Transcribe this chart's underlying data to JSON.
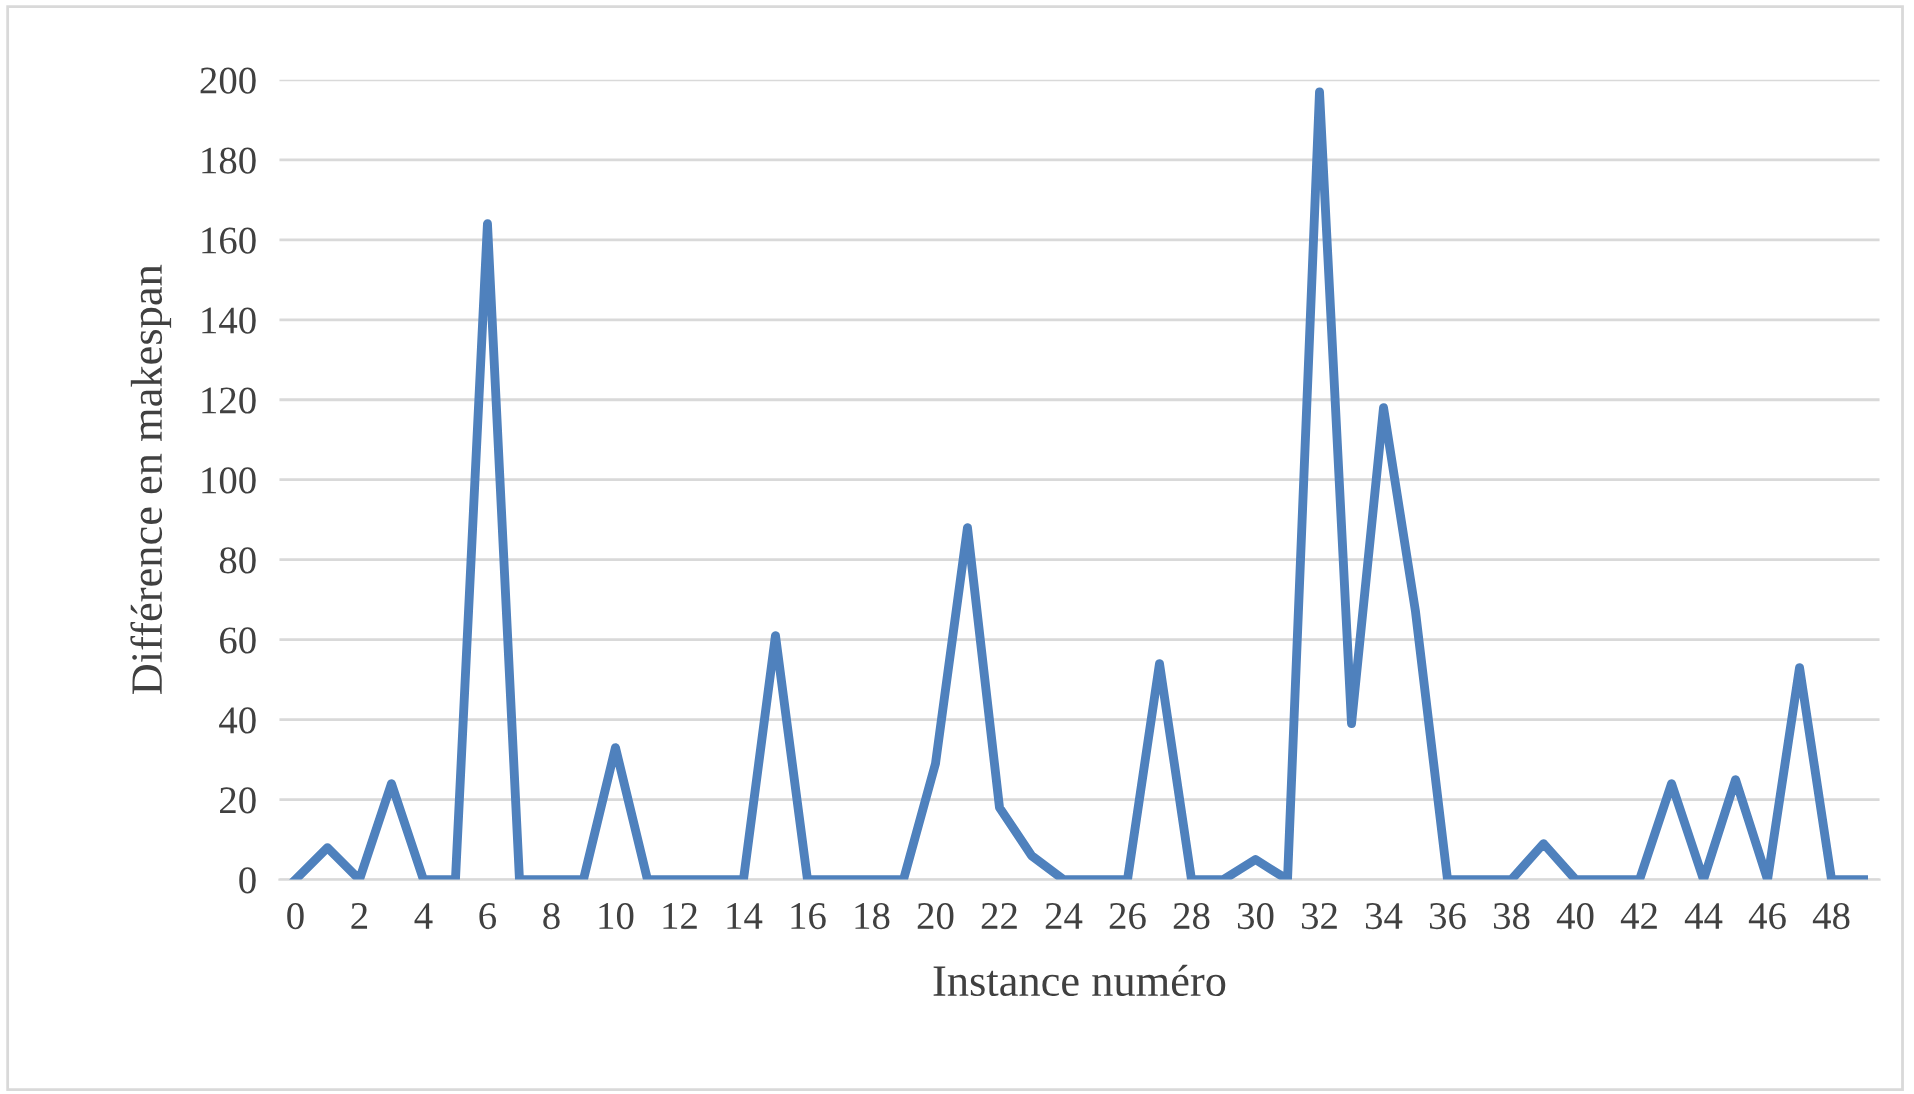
{
  "chart_data": {
    "type": "line",
    "xlabel": "Instance numéro",
    "ylabel": "Différence en makespan",
    "categories": [
      "0",
      null,
      "2",
      null,
      "4",
      null,
      "6",
      null,
      "8",
      null,
      "10",
      null,
      "12",
      null,
      "14",
      null,
      "16",
      null,
      "18",
      null,
      "20",
      null,
      "22",
      null,
      "24",
      null,
      "26",
      null,
      "28",
      null,
      "30",
      null,
      "32",
      null,
      "34",
      null,
      "36",
      null,
      "38",
      null,
      "40",
      null,
      "42",
      null,
      "44",
      null,
      "46",
      null,
      "48",
      null
    ],
    "series": [
      {
        "color": "#4f81bd",
        "values": [
          0,
          8,
          0,
          24,
          0,
          0,
          164,
          0,
          0,
          0,
          33,
          0,
          0,
          0,
          0,
          61,
          0,
          0,
          0,
          0,
          29,
          88,
          18,
          6,
          0,
          0,
          0,
          54,
          0,
          0,
          5,
          0,
          197,
          39,
          118,
          67,
          0,
          0,
          0,
          9,
          0,
          0,
          0,
          24,
          0,
          25,
          0,
          53,
          0,
          0
        ]
      }
    ],
    "ylim": [
      0,
      200
    ],
    "yticks": [
      0,
      20,
      40,
      60,
      80,
      100,
      120,
      140,
      160,
      180,
      200
    ],
    "grid": "y",
    "marker": "none",
    "line_style": "solid"
  }
}
